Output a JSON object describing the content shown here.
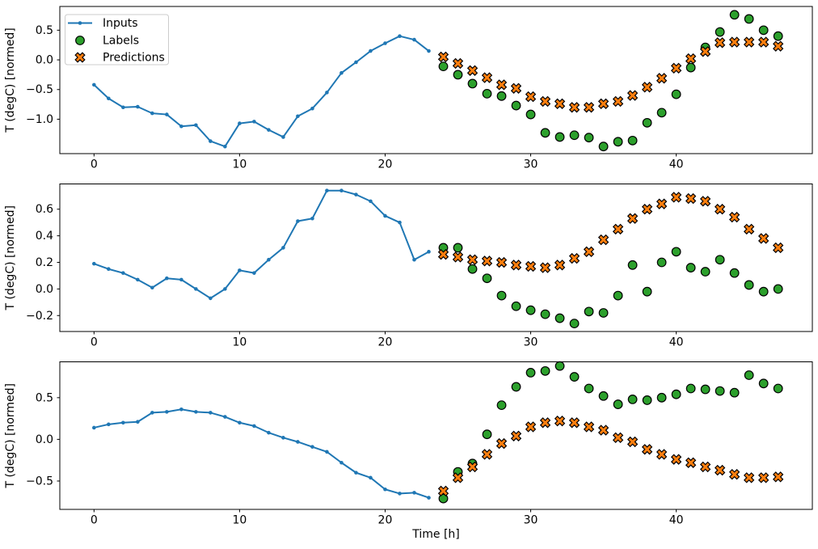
{
  "figure": {
    "xlabel": "Time [h]",
    "ylabel": "T (degC) [normed]",
    "colors": {
      "inputs": "#1f77b4",
      "labels": "#2ca02c",
      "predictions": "#ff7f0e",
      "marker_edge": "#000000",
      "spine": "#000000",
      "legend_border": "#cccccc",
      "background": "#ffffff"
    },
    "legend": {
      "position": "upper-left",
      "entries": [
        {
          "label": "Inputs",
          "marker": "line-dot-icon"
        },
        {
          "label": "Labels",
          "marker": "circle-icon"
        },
        {
          "label": "Predictions",
          "marker": "x-icon"
        }
      ]
    }
  },
  "chart_data": [
    {
      "type": "line",
      "subplot": 1,
      "title": "",
      "xlabel": "",
      "ylabel": "T (degC) [normed]",
      "xlim": [
        -2.35,
        49.35
      ],
      "ylim": [
        -1.58,
        0.9
      ],
      "xticks": [
        0,
        10,
        20,
        30,
        40
      ],
      "xtick_labels": [
        "0",
        "10",
        "20",
        "30",
        "40"
      ],
      "yticks": [
        0.5,
        0.0,
        -0.5,
        -1.0
      ],
      "ytick_labels": [
        "0.5",
        "0.0",
        "−0.5",
        "−1.0"
      ],
      "grid": false,
      "legend_visible": true,
      "series": [
        {
          "name": "Inputs",
          "type": "line",
          "marker": "dot",
          "x": [
            0,
            1,
            2,
            3,
            4,
            5,
            6,
            7,
            8,
            9,
            10,
            11,
            12,
            13,
            14,
            15,
            16,
            17,
            18,
            19,
            20,
            21,
            22,
            23
          ],
          "y": [
            -0.42,
            -0.65,
            -0.8,
            -0.79,
            -0.9,
            -0.92,
            -1.12,
            -1.1,
            -1.37,
            -1.46,
            -1.07,
            -1.04,
            -1.18,
            -1.3,
            -0.95,
            -0.82,
            -0.55,
            -0.22,
            -0.04,
            0.15,
            0.28,
            0.4,
            0.34,
            0.15
          ]
        },
        {
          "name": "Labels",
          "type": "scatter",
          "marker": "circle",
          "x": [
            24,
            25,
            26,
            27,
            28,
            29,
            30,
            31,
            32,
            33,
            34,
            35,
            36,
            37,
            38,
            39,
            40,
            41,
            42,
            43,
            44,
            45,
            46,
            47
          ],
          "y": [
            -0.11,
            -0.25,
            -0.4,
            -0.57,
            -0.61,
            -0.77,
            -0.92,
            -1.23,
            -1.3,
            -1.27,
            -1.31,
            -1.46,
            -1.38,
            -1.36,
            -1.06,
            -0.89,
            -0.58,
            -0.13,
            0.21,
            0.47,
            0.76,
            0.69,
            0.5,
            0.4
          ]
        },
        {
          "name": "Predictions",
          "type": "scatter",
          "marker": "x",
          "x": [
            24,
            25,
            26,
            27,
            28,
            29,
            30,
            31,
            32,
            33,
            34,
            35,
            36,
            37,
            38,
            39,
            40,
            41,
            42,
            43,
            44,
            45,
            46,
            47
          ],
          "y": [
            0.05,
            -0.06,
            -0.18,
            -0.3,
            -0.42,
            -0.48,
            -0.62,
            -0.7,
            -0.74,
            -0.8,
            -0.8,
            -0.74,
            -0.7,
            -0.6,
            -0.46,
            -0.31,
            -0.14,
            0.02,
            0.14,
            0.29,
            0.3,
            0.3,
            0.3,
            0.23
          ]
        }
      ]
    },
    {
      "type": "line",
      "subplot": 2,
      "title": "",
      "xlabel": "",
      "ylabel": "T (degC) [normed]",
      "xlim": [
        -2.35,
        49.35
      ],
      "ylim": [
        -0.32,
        0.79
      ],
      "xticks": [
        0,
        10,
        20,
        30,
        40
      ],
      "xtick_labels": [
        "0",
        "10",
        "20",
        "30",
        "40"
      ],
      "yticks": [
        0.6,
        0.4,
        0.2,
        0.0,
        -0.2
      ],
      "ytick_labels": [
        "0.6",
        "0.4",
        "0.2",
        "0.0",
        "−0.2"
      ],
      "grid": false,
      "legend_visible": false,
      "series": [
        {
          "name": "Inputs",
          "type": "line",
          "marker": "dot",
          "x": [
            0,
            1,
            2,
            3,
            4,
            5,
            6,
            7,
            8,
            9,
            10,
            11,
            12,
            13,
            14,
            15,
            16,
            17,
            18,
            19,
            20,
            21,
            22,
            23
          ],
          "y": [
            0.19,
            0.15,
            0.12,
            0.07,
            0.01,
            0.08,
            0.07,
            0.0,
            -0.07,
            0.0,
            0.14,
            0.12,
            0.22,
            0.31,
            0.51,
            0.53,
            0.74,
            0.74,
            0.71,
            0.66,
            0.55,
            0.5,
            0.22,
            0.28
          ]
        },
        {
          "name": "Labels",
          "type": "scatter",
          "marker": "circle",
          "x": [
            24,
            25,
            26,
            27,
            28,
            29,
            30,
            31,
            32,
            33,
            34,
            35,
            36,
            37,
            38,
            39,
            40,
            41,
            42,
            43,
            44,
            45,
            46,
            47
          ],
          "y": [
            0.31,
            0.31,
            0.15,
            0.08,
            -0.05,
            -0.13,
            -0.16,
            -0.19,
            -0.22,
            -0.26,
            -0.17,
            -0.18,
            -0.05,
            0.18,
            -0.02,
            0.2,
            0.28,
            0.16,
            0.13,
            0.22,
            0.12,
            0.03,
            -0.02,
            0.0
          ]
        },
        {
          "name": "Predictions",
          "type": "scatter",
          "marker": "x",
          "x": [
            24,
            25,
            26,
            27,
            28,
            29,
            30,
            31,
            32,
            33,
            34,
            35,
            36,
            37,
            38,
            39,
            40,
            41,
            42,
            43,
            44,
            45,
            46,
            47
          ],
          "y": [
            0.26,
            0.24,
            0.22,
            0.21,
            0.2,
            0.18,
            0.17,
            0.16,
            0.18,
            0.23,
            0.28,
            0.37,
            0.45,
            0.53,
            0.6,
            0.64,
            0.69,
            0.68,
            0.66,
            0.6,
            0.54,
            0.45,
            0.38,
            0.31
          ]
        }
      ]
    },
    {
      "type": "line",
      "subplot": 3,
      "title": "",
      "xlabel": "Time [h]",
      "ylabel": "T (degC) [normed]",
      "xlim": [
        -2.35,
        49.35
      ],
      "ylim": [
        -0.84,
        0.93
      ],
      "xticks": [
        0,
        10,
        20,
        30,
        40
      ],
      "xtick_labels": [
        "0",
        "10",
        "20",
        "30",
        "40"
      ],
      "yticks": [
        0.5,
        0.0,
        -0.5
      ],
      "ytick_labels": [
        "0.5",
        "0.0",
        "−0.5"
      ],
      "grid": false,
      "legend_visible": false,
      "series": [
        {
          "name": "Inputs",
          "type": "line",
          "marker": "dot",
          "x": [
            0,
            1,
            2,
            3,
            4,
            5,
            6,
            7,
            8,
            9,
            10,
            11,
            12,
            13,
            14,
            15,
            16,
            17,
            18,
            19,
            20,
            21,
            22,
            23
          ],
          "y": [
            0.14,
            0.18,
            0.2,
            0.21,
            0.32,
            0.33,
            0.36,
            0.33,
            0.32,
            0.27,
            0.2,
            0.16,
            0.08,
            0.02,
            -0.03,
            -0.09,
            -0.15,
            -0.28,
            -0.4,
            -0.46,
            -0.6,
            -0.65,
            -0.64,
            -0.7
          ]
        },
        {
          "name": "Labels",
          "type": "scatter",
          "marker": "circle",
          "x": [
            24,
            25,
            26,
            27,
            28,
            29,
            30,
            31,
            32,
            33,
            34,
            35,
            36,
            37,
            38,
            39,
            40,
            41,
            42,
            43,
            44,
            45,
            46,
            47
          ],
          "y": [
            -0.71,
            -0.39,
            -0.29,
            0.06,
            0.41,
            0.63,
            0.8,
            0.82,
            0.88,
            0.75,
            0.61,
            0.52,
            0.42,
            0.48,
            0.47,
            0.5,
            0.54,
            0.61,
            0.6,
            0.58,
            0.56,
            0.77,
            0.67,
            0.61
          ]
        },
        {
          "name": "Predictions",
          "type": "scatter",
          "marker": "x",
          "x": [
            24,
            25,
            26,
            27,
            28,
            29,
            30,
            31,
            32,
            33,
            34,
            35,
            36,
            37,
            38,
            39,
            40,
            41,
            42,
            43,
            44,
            45,
            46,
            47
          ],
          "y": [
            -0.62,
            -0.46,
            -0.33,
            -0.18,
            -0.05,
            0.04,
            0.15,
            0.2,
            0.22,
            0.2,
            0.15,
            0.11,
            0.02,
            -0.03,
            -0.12,
            -0.18,
            -0.24,
            -0.28,
            -0.33,
            -0.37,
            -0.42,
            -0.46,
            -0.46,
            -0.45
          ]
        }
      ]
    }
  ]
}
